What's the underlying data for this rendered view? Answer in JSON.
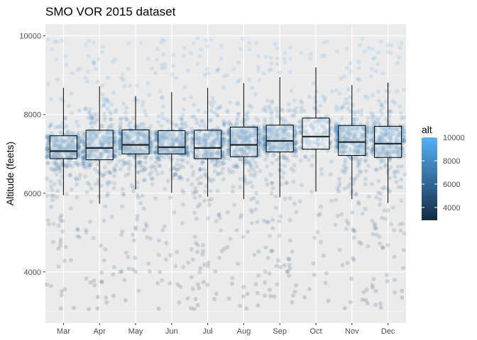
{
  "chart_data": {
    "type": "box",
    "title": "SMO VOR 2015 dataset",
    "xlabel": "",
    "ylabel": "Altitude (feets)",
    "categories": [
      "Mar",
      "Apr",
      "May",
      "Jun",
      "Jul",
      "Aug",
      "Sep",
      "Oct",
      "Nov",
      "Dec"
    ],
    "ylim": [
      2700,
      10300
    ],
    "yticks": [
      4000,
      6000,
      8000,
      10000
    ],
    "ytick_labels": [
      "4000",
      "6000",
      "8000",
      "10000"
    ],
    "grid": true,
    "boxes": [
      {
        "category": "Mar",
        "min": 5950,
        "q1": 6880,
        "median": 7070,
        "q3": 7460,
        "max": 8680
      },
      {
        "category": "Apr",
        "min": 5730,
        "q1": 6850,
        "median": 7150,
        "q3": 7600,
        "max": 8720
      },
      {
        "category": "May",
        "min": 6100,
        "q1": 7000,
        "median": 7230,
        "q3": 7610,
        "max": 8470
      },
      {
        "category": "Jun",
        "min": 6010,
        "q1": 7000,
        "median": 7170,
        "q3": 7590,
        "max": 8570
      },
      {
        "category": "Jul",
        "min": 5910,
        "q1": 6880,
        "median": 7150,
        "q3": 7600,
        "max": 8680
      },
      {
        "category": "Aug",
        "min": 5850,
        "q1": 6930,
        "median": 7230,
        "q3": 7680,
        "max": 8800
      },
      {
        "category": "Sep",
        "min": 5900,
        "q1": 7050,
        "median": 7330,
        "q3": 7730,
        "max": 8950
      },
      {
        "category": "Oct",
        "min": 6040,
        "q1": 7120,
        "median": 7440,
        "q3": 7910,
        "max": 9200
      },
      {
        "category": "Nov",
        "min": 5850,
        "q1": 6960,
        "median": 7300,
        "q3": 7720,
        "max": 8750
      },
      {
        "category": "Dec",
        "min": 5750,
        "q1": 6910,
        "median": 7260,
        "q3": 7700,
        "max": 8810
      }
    ],
    "color_scale": {
      "variable": "alt",
      "title": "alt",
      "range": [
        2900,
        10000
      ],
      "breaks": [
        4000,
        6000,
        8000,
        10000
      ],
      "break_labels": [
        "4000",
        "6000",
        "8000",
        "10000"
      ],
      "low_color": "#132b43",
      "high_color": "#56b1f7"
    }
  }
}
